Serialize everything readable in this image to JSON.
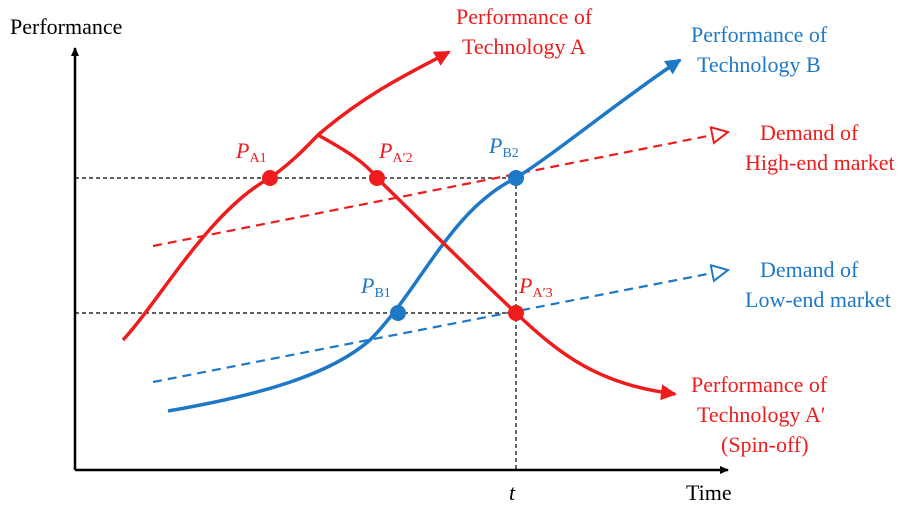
{
  "axes": {
    "y_label": "Performance",
    "x_label": "Time",
    "t_label": "t"
  },
  "labels": {
    "tech_a_line1": "Performance of",
    "tech_a_line2": "Technology A",
    "tech_b_line1": "Performance of",
    "tech_b_line2": "Technology B",
    "high_line1": "Demand of",
    "high_line2": "High-end market",
    "low_line1": "Demand of",
    "low_line2": "Low-end market",
    "spin_line1": "Performance of",
    "spin_line2": "Technology A′",
    "spin_line3": "(Spin-off)"
  },
  "points": {
    "pa1": {
      "p": "P",
      "sub": "A1"
    },
    "pa2": {
      "p": "P",
      "sub": "A′2"
    },
    "pa3": {
      "p": "P",
      "sub": "A′3"
    },
    "pb1": {
      "p": "P",
      "sub": "B1"
    },
    "pb2": {
      "p": "P",
      "sub": "B2"
    }
  },
  "colors": {
    "red": "#ee1c1c",
    "blue": "#1e78c8",
    "axis": "#000000"
  }
}
